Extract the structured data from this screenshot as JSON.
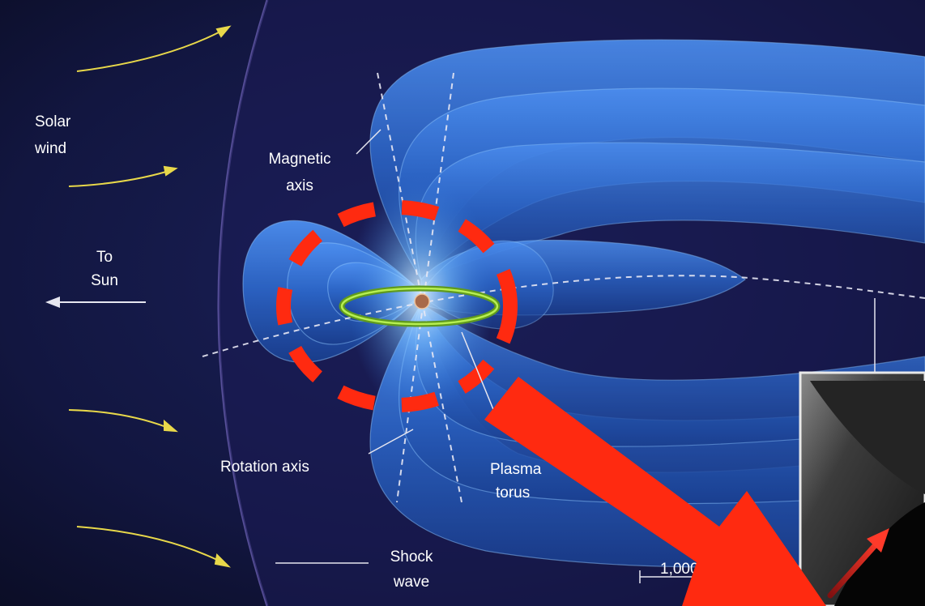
{
  "labels": {
    "solar_wind": [
      "Solar",
      "wind"
    ],
    "to_sun": [
      "To",
      "Sun"
    ],
    "magnetic_axis": [
      "Magnetic",
      "axis"
    ],
    "rotation_axis": "Rotation axis",
    "plasma_torus": [
      "Plasma",
      "torus"
    ],
    "shock_wave": [
      "Shock",
      "wave"
    ],
    "scale": "1,000"
  },
  "colors": {
    "background": "#0c0e2a",
    "field_lines": "#2f73d6",
    "field_glow": "#7fc3ff",
    "solar_wind_arrows": "#e8d84a",
    "torus": "#8fd43a",
    "highlight": "#ff2a10",
    "axes": "#e8e8f4"
  },
  "icons": {
    "planet": "jupiter-icon",
    "direction_arrow": "arrow-left-icon",
    "callout_arrow": "arrow-down-right-icon"
  }
}
